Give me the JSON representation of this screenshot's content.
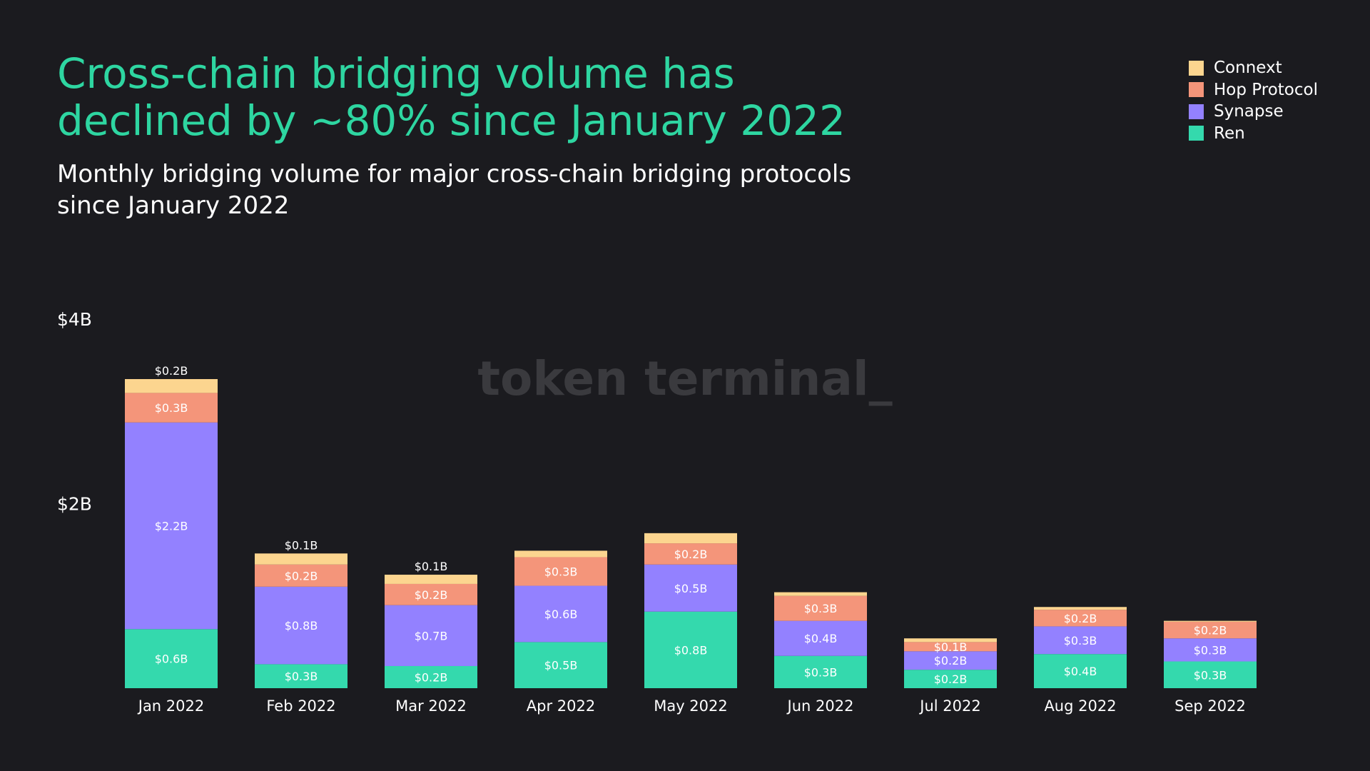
{
  "header": {
    "title": "Cross-chain bridging volume has declined by ~80% since January 2022",
    "subtitle": "Monthly bridging volume for major cross-chain bridging protocols since January 2022"
  },
  "watermark": "token terminal_",
  "colors": {
    "background": "#1b1b1f",
    "title": "#2ed6a1",
    "Ren": "#34d9ad",
    "Synapse": "#9381ff",
    "Hop Protocol": "#f4957a",
    "Connext": "#fcd58f",
    "watermark": "#3a3a3e"
  },
  "legend": [
    {
      "label": "Connext",
      "color": "#fcd58f"
    },
    {
      "label": "Hop Protocol",
      "color": "#f4957a"
    },
    {
      "label": "Synapse",
      "color": "#9381ff"
    },
    {
      "label": "Ren",
      "color": "#34d9ad"
    }
  ],
  "chart_data": {
    "type": "bar",
    "stacked": true,
    "title": "Cross-chain bridging volume has declined by ~80% since January 2022",
    "subtitle": "Monthly bridging volume for major cross-chain bridging protocols since January 2022",
    "xlabel": "",
    "ylabel": "",
    "ylim": [
      0,
      4
    ],
    "yticks": [
      {
        "value": 2,
        "label": "$2B"
      },
      {
        "value": 4,
        "label": "$4B"
      }
    ],
    "grid": false,
    "legend_position": "top-right",
    "categories": [
      "Jan 2022",
      "Feb 2022",
      "Mar 2022",
      "Apr 2022",
      "May 2022",
      "Jun 2022",
      "Jul 2022",
      "Aug 2022",
      "Sep 2022"
    ],
    "series": [
      {
        "name": "Ren",
        "values": [
          0.64,
          0.26,
          0.24,
          0.5,
          0.83,
          0.35,
          0.2,
          0.37,
          0.29
        ],
        "labels": [
          "$0.6B",
          "$0.3B",
          "$0.2B",
          "$0.5B",
          "$0.8B",
          "$0.3B",
          "$0.2B",
          "$0.4B",
          "$0.3B"
        ]
      },
      {
        "name": "Synapse",
        "values": [
          2.24,
          0.84,
          0.66,
          0.61,
          0.51,
          0.38,
          0.2,
          0.3,
          0.25
        ],
        "labels": [
          "$2.2B",
          "$0.8B",
          "$0.7B",
          "$0.6B",
          "$0.5B",
          "$0.4B",
          "$0.2B",
          "$0.3B",
          "$0.3B"
        ]
      },
      {
        "name": "Hop Protocol",
        "values": [
          0.32,
          0.24,
          0.23,
          0.31,
          0.23,
          0.27,
          0.1,
          0.18,
          0.18
        ],
        "labels": [
          "$0.3B",
          "$0.2B",
          "$0.2B",
          "$0.3B",
          "$0.2B",
          "$0.3B",
          "$0.1B",
          "$0.2B",
          "$0.2B"
        ]
      },
      {
        "name": "Connext",
        "values": [
          0.15,
          0.12,
          0.1,
          0.07,
          0.11,
          0.04,
          0.04,
          0.03,
          0.01
        ],
        "labels": [
          "$0.2B",
          "$0.1B",
          "$0.1B",
          "",
          "",
          "",
          "",
          "",
          ""
        ]
      }
    ]
  }
}
